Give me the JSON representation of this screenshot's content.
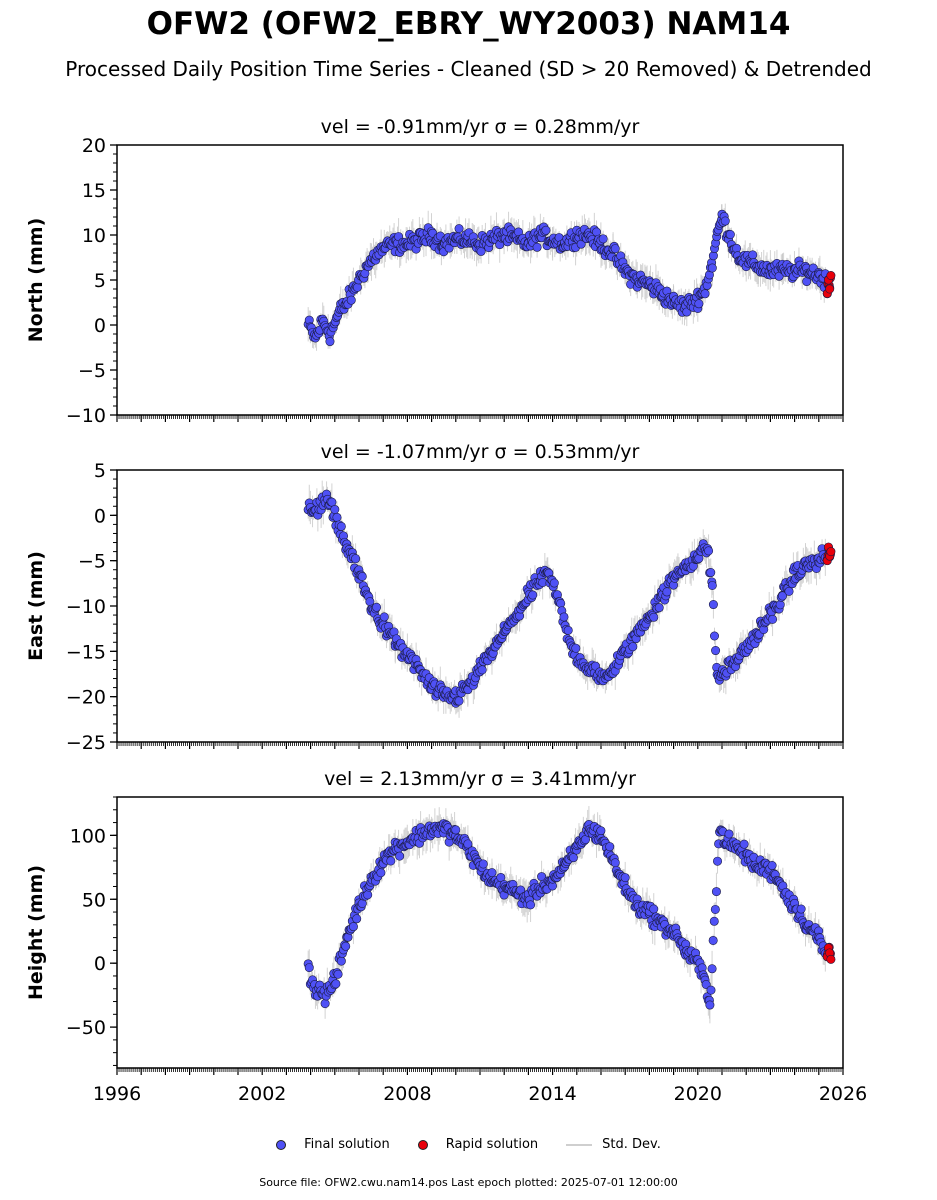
{
  "header": {
    "title": "OFW2 (OFW2_EBRY_WY2003) NAM14",
    "subtitle": "Processed Daily Position Time Series - Cleaned (SD > 20 Removed) & Detrended"
  },
  "legend": {
    "final_label": "Final solution",
    "rapid_label": "Rapid solution",
    "std_label": "Std. Dev."
  },
  "colors": {
    "final": "#4f51f5",
    "rapid": "#e8000b",
    "std": "#c8c8c8"
  },
  "footer": {
    "text": "Source file: OFW2.cwu.nam14.pos  Last epoch plotted: 2025-07-01 12:00:00"
  },
  "chart_data": [
    {
      "type": "scatter",
      "title": "vel = -0.91mm/yr   σ = 0.28mm/yr",
      "ylabel": "North (mm)",
      "xlabel": "",
      "xlim": [
        1996,
        2026
      ],
      "ylim": [
        -10,
        20
      ],
      "yticks": [
        -10,
        -5,
        0,
        5,
        10,
        15,
        20
      ],
      "xticks": [
        1996,
        2002,
        2008,
        2014,
        2020,
        2026
      ],
      "show_xticklabels": false,
      "series": [
        {
          "role": "final",
          "x": [
            2003.9,
            2004.2,
            2004.5,
            2004.8,
            2005.2,
            2005.5,
            2005.8,
            2006.2,
            2006.6,
            2007.0,
            2007.5,
            2008.0,
            2008.5,
            2009.0,
            2009.5,
            2010.0,
            2010.5,
            2011.0,
            2011.5,
            2012.0,
            2012.5,
            2013.0,
            2013.5,
            2014.0,
            2014.5,
            2015.0,
            2015.5,
            2016.0,
            2016.5,
            2017.0,
            2017.5,
            2018.0,
            2018.5,
            2019.0,
            2019.5,
            2020.0,
            2020.3,
            2020.6,
            2020.8,
            2021.0,
            2021.3,
            2021.6,
            2022.0,
            2022.5,
            2023.0,
            2023.5,
            2024.0,
            2024.5,
            2025.0,
            2025.3
          ],
          "y": [
            0,
            -1.5,
            0.5,
            -1,
            1.5,
            2.5,
            4,
            6,
            7.5,
            8.5,
            9,
            9,
            9.5,
            10,
            9,
            9.5,
            9.5,
            9,
            9.5,
            10,
            9.5,
            9,
            10,
            9.5,
            9,
            10,
            10,
            9,
            8,
            6,
            5,
            4.5,
            3.5,
            2.5,
            2,
            3,
            4,
            7,
            10,
            12,
            10,
            8,
            7,
            6.5,
            6,
            6,
            6,
            6,
            5.5,
            5
          ]
        },
        {
          "role": "rapid",
          "x": [
            2025.35,
            2025.4,
            2025.45,
            2025.5
          ],
          "y": [
            3.5,
            5,
            4,
            5.5
          ]
        }
      ]
    },
    {
      "type": "scatter",
      "title": "vel = -1.07mm/yr   σ = 0.53mm/yr",
      "ylabel": "East (mm)",
      "xlabel": "",
      "xlim": [
        1996,
        2026
      ],
      "ylim": [
        -25,
        5
      ],
      "yticks": [
        -25,
        -20,
        -15,
        -10,
        -5,
        0,
        5
      ],
      "xticks": [
        1996,
        2002,
        2008,
        2014,
        2020,
        2026
      ],
      "show_xticklabels": false,
      "series": [
        {
          "role": "final",
          "x": [
            2003.9,
            2004.3,
            2004.7,
            2005.0,
            2005.5,
            2006.0,
            2006.5,
            2007.0,
            2007.5,
            2008.0,
            2008.5,
            2009.0,
            2009.5,
            2010.0,
            2010.5,
            2011.0,
            2011.5,
            2012.0,
            2012.5,
            2013.0,
            2013.5,
            2013.8,
            2014.2,
            2014.6,
            2015.0,
            2015.5,
            2016.0,
            2016.5,
            2017.0,
            2017.5,
            2018.0,
            2018.5,
            2019.0,
            2019.5,
            2020.0,
            2020.4,
            2020.6,
            2020.8,
            2021.2,
            2021.6,
            2022.0,
            2022.5,
            2023.0,
            2023.5,
            2024.0,
            2024.5,
            2025.0,
            2025.3
          ],
          "y": [
            0.5,
            1,
            1.5,
            0,
            -3.5,
            -6.5,
            -10,
            -12,
            -14,
            -15.5,
            -17,
            -19,
            -20,
            -20,
            -19,
            -17,
            -15,
            -13,
            -11,
            -9,
            -7,
            -6.5,
            -9,
            -13,
            -15.5,
            -17,
            -18,
            -17,
            -15,
            -13,
            -11,
            -9,
            -7,
            -5.5,
            -4.5,
            -3.5,
            -8,
            -18,
            -17,
            -16,
            -14.5,
            -13,
            -11,
            -9,
            -6.5,
            -5.5,
            -5,
            -4.5
          ]
        },
        {
          "role": "rapid",
          "x": [
            2025.35,
            2025.4,
            2025.45,
            2025.5
          ],
          "y": [
            -5,
            -3.5,
            -4.5,
            -4
          ]
        }
      ]
    },
    {
      "type": "scatter",
      "title": "vel = 2.13mm/yr   σ = 3.41mm/yr",
      "ylabel": "Height (mm)",
      "xlabel": "",
      "xlim": [
        1996,
        2026
      ],
      "ylim": [
        -82,
        130
      ],
      "yticks": [
        -50,
        0,
        50,
        100
      ],
      "xticks": [
        1996,
        2002,
        2008,
        2014,
        2020,
        2026
      ],
      "show_xticklabels": true,
      "series": [
        {
          "role": "final",
          "x": [
            2003.9,
            2004.2,
            2004.6,
            2005.0,
            2005.5,
            2006.0,
            2006.5,
            2007.0,
            2007.5,
            2008.0,
            2008.5,
            2009.0,
            2009.5,
            2010.0,
            2010.5,
            2011.0,
            2011.5,
            2012.0,
            2012.5,
            2013.0,
            2013.5,
            2014.0,
            2014.5,
            2015.0,
            2015.5,
            2016.0,
            2016.5,
            2017.0,
            2017.5,
            2018.0,
            2018.5,
            2019.0,
            2019.5,
            2020.0,
            2020.3,
            2020.5,
            2020.9,
            2021.2,
            2021.6,
            2022.0,
            2022.4,
            2022.8,
            2023.2,
            2023.6,
            2024.0,
            2024.5,
            2025.0,
            2025.3
          ],
          "y": [
            -5,
            -20,
            -25,
            -15,
            20,
            45,
            65,
            80,
            90,
            95,
            100,
            105,
            105,
            100,
            90,
            75,
            65,
            60,
            55,
            50,
            60,
            65,
            75,
            90,
            105,
            100,
            80,
            60,
            45,
            40,
            30,
            25,
            10,
            0,
            -15,
            -30,
            105,
            95,
            90,
            85,
            75,
            75,
            70,
            55,
            45,
            30,
            20,
            5
          ]
        },
        {
          "role": "rapid",
          "x": [
            2025.35,
            2025.4,
            2025.45,
            2025.5
          ],
          "y": [
            5,
            12,
            8,
            3
          ]
        }
      ]
    }
  ]
}
